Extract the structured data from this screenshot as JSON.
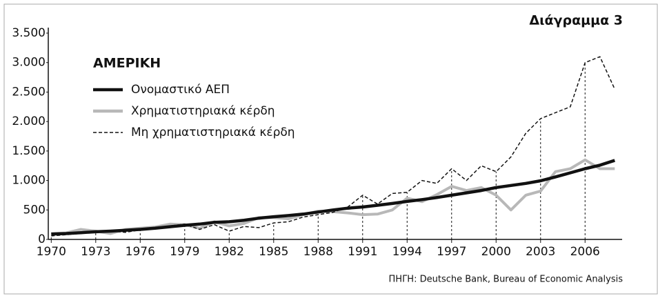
{
  "chart_data": {
    "type": "line",
    "title": "Διάγραμμα 3",
    "subtitle": "ΑΜΕΡΙΚΗ",
    "source": "ΠΗΓΗ: Deutsche Bank, Bureau of Economic Analysis",
    "x": [
      1970,
      1971,
      1972,
      1973,
      1974,
      1975,
      1976,
      1977,
      1978,
      1979,
      1980,
      1981,
      1982,
      1983,
      1984,
      1985,
      1986,
      1987,
      1988,
      1989,
      1990,
      1991,
      1992,
      1993,
      1994,
      1995,
      1996,
      1997,
      1998,
      1999,
      2000,
      2001,
      2002,
      2003,
      2004,
      2005,
      2006,
      2007,
      2008
    ],
    "series": [
      {
        "name": "Ονομαστικό ΑΕΠ",
        "color": "#111111",
        "style": "thick",
        "values": [
          90,
          100,
          115,
          130,
          140,
          155,
          170,
          190,
          215,
          240,
          260,
          290,
          300,
          325,
          360,
          385,
          405,
          430,
          465,
          500,
          530,
          550,
          580,
          610,
          645,
          675,
          710,
          750,
          790,
          830,
          880,
          915,
          950,
          995,
          1060,
          1130,
          1200,
          1260,
          1340
        ]
      },
      {
        "name": "Χρηματιστηριακά κέρδη",
        "color": "#b8b8b8",
        "style": "thick",
        "values": [
          100,
          110,
          170,
          140,
          100,
          170,
          190,
          210,
          260,
          250,
          190,
          300,
          230,
          270,
          370,
          370,
          350,
          420,
          480,
          470,
          450,
          420,
          430,
          500,
          700,
          640,
          760,
          900,
          830,
          880,
          750,
          500,
          750,
          820,
          1150,
          1200,
          1350,
          1200,
          1200
        ]
      },
      {
        "name": "Μη χρηματιστηριακά κέρδη",
        "color": "#111111",
        "style": "dashed",
        "values": [
          60,
          80,
          100,
          130,
          140,
          120,
          160,
          200,
          230,
          260,
          170,
          250,
          140,
          220,
          200,
          280,
          300,
          380,
          420,
          460,
          550,
          750,
          600,
          780,
          800,
          1000,
          950,
          1200,
          1000,
          1250,
          1150,
          1400,
          1800,
          2050,
          2150,
          2250,
          3000,
          3100,
          2550
        ]
      }
    ],
    "xlim": [
      1969.8,
      2008.5
    ],
    "xticks": [
      1970,
      1973,
      1976,
      1979,
      1982,
      1985,
      1988,
      1991,
      1994,
      1997,
      2000,
      2003,
      2006
    ],
    "ylim": [
      0,
      3500
    ],
    "yticks": [
      0,
      500,
      {
        "value": 1000,
        "label": "1.000"
      },
      {
        "value": 1500,
        "label": "1.500"
      },
      {
        "value": 2000,
        "label": "2.000"
      },
      {
        "value": 2500,
        "label": "2.500"
      },
      {
        "value": 3000,
        "label": "3.000"
      },
      {
        "value": 3500,
        "label": "3.500"
      }
    ]
  }
}
